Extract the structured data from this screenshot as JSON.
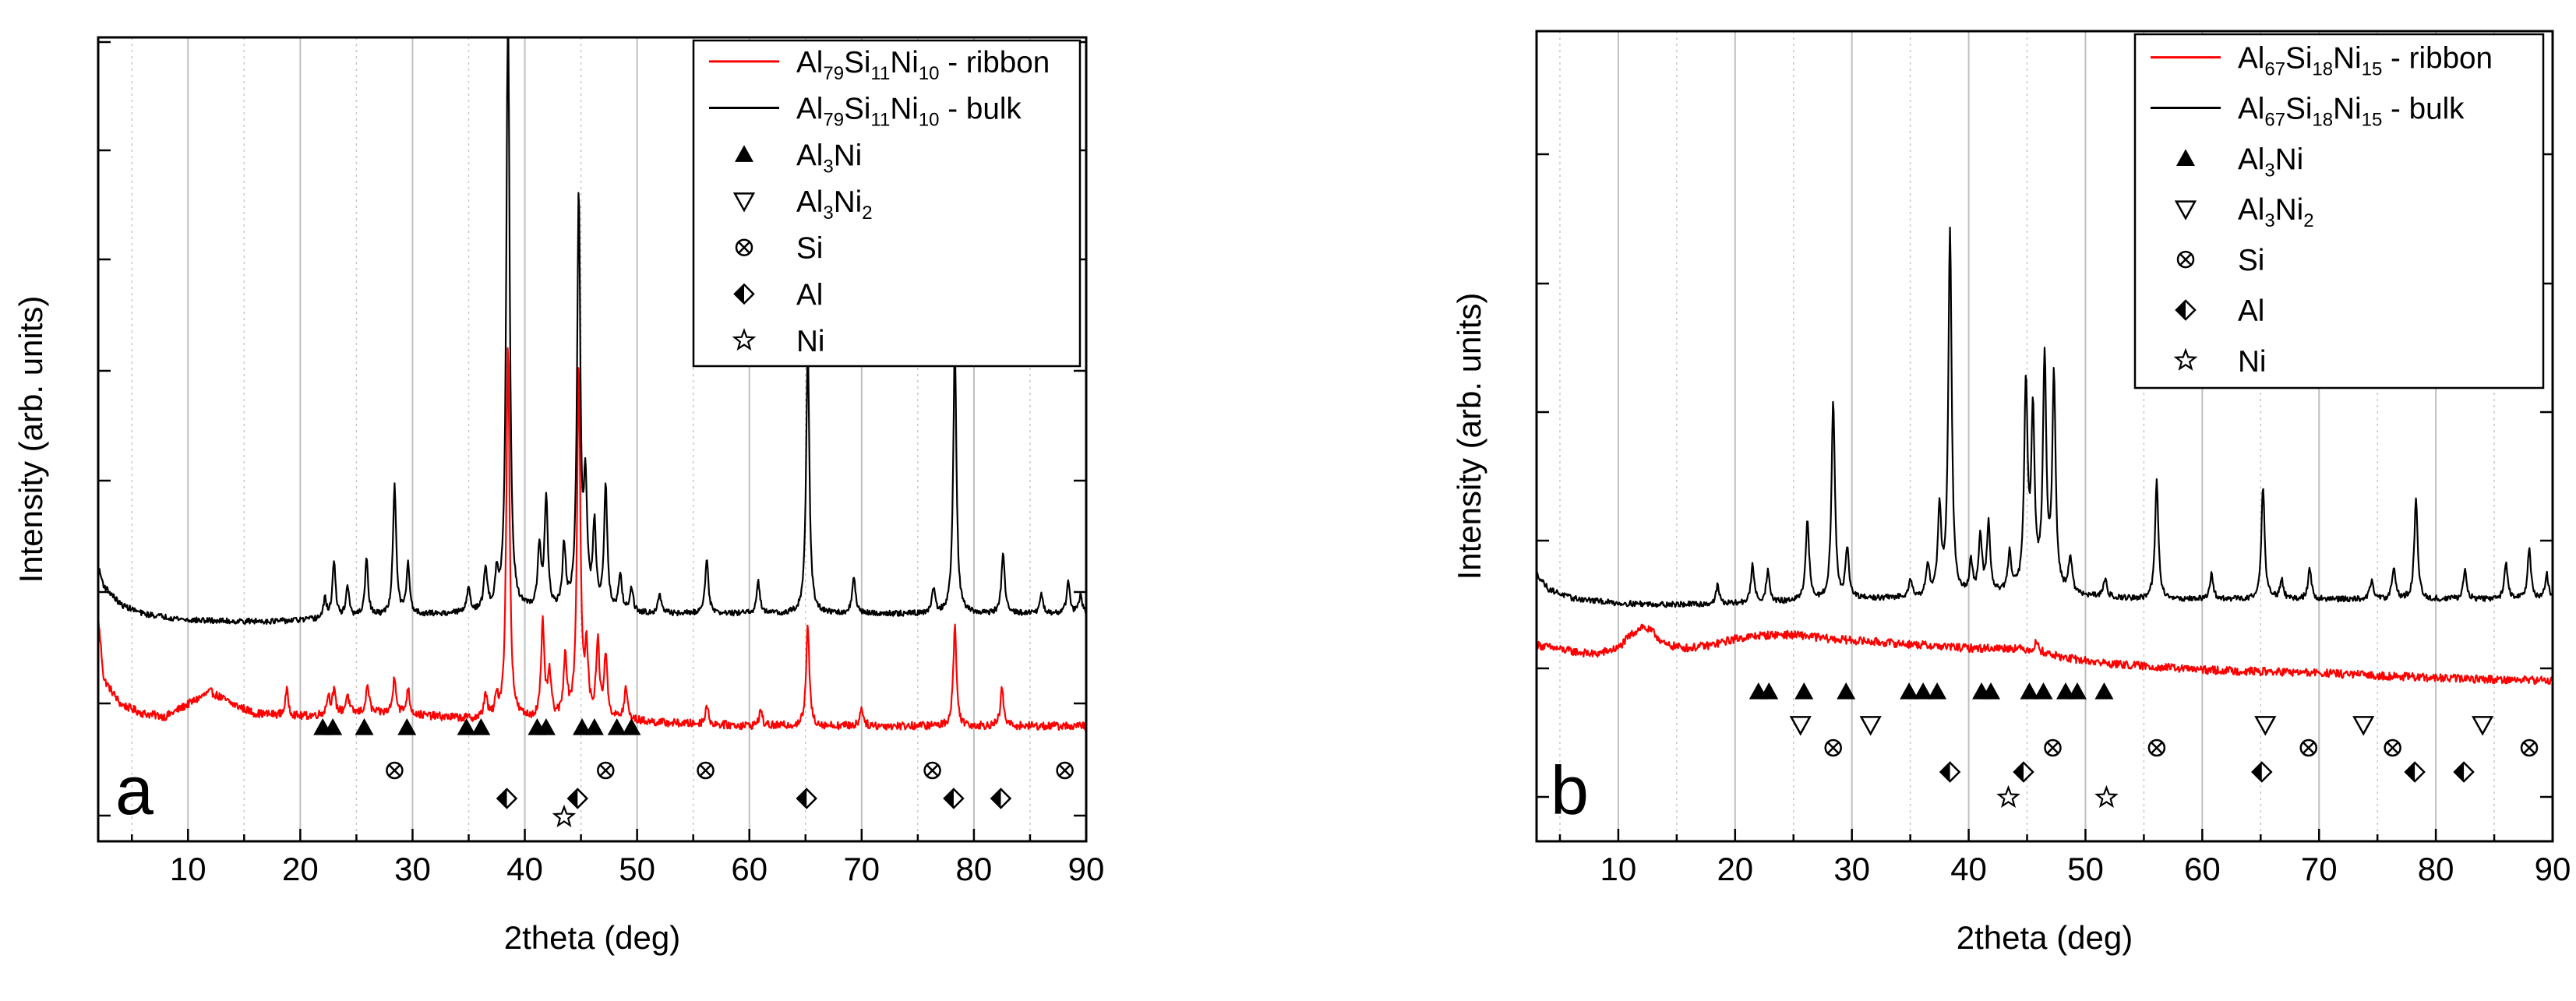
{
  "colors": {
    "ribbon": "#ff0000",
    "bulk": "#000000",
    "axis": "#000000",
    "grid": "#bfbfbf",
    "minorGrid": "#c8c8c8"
  },
  "chart_data": [
    {
      "id": "a",
      "type": "line",
      "panel_label": "a",
      "xlabel": "2theta (deg)",
      "ylabel": "Intensity (arb. units)",
      "xlim": [
        2,
        90
      ],
      "ylim": [
        0,
        100
      ],
      "xticks": [
        "10",
        "20",
        "30",
        "40",
        "50",
        "60",
        "70",
        "80",
        "90"
      ],
      "legend_position": "top-right",
      "series": [
        {
          "name": "Al79Si11Ni10 - ribbon",
          "legend": {
            "base1": "Al",
            "sub1": "79",
            "base2": "Si",
            "sub2": "11",
            "base3": "Ni",
            "sub3": "10",
            "suffix": " - ribbon"
          },
          "color": "#ff0000",
          "baseline": [
            [
              2,
              36
            ],
            [
              2.5,
              26
            ],
            [
              4,
              22
            ],
            [
              6,
              20.5
            ],
            [
              8,
              20
            ],
            [
              10,
              22
            ],
            [
              12,
              24
            ],
            [
              14,
              22
            ],
            [
              16,
              20.5
            ],
            [
              20,
              20
            ],
            [
              24,
              20.5
            ],
            [
              28,
              20.5
            ],
            [
              32,
              20
            ],
            [
              36,
              19.5
            ],
            [
              40,
              19.5
            ],
            [
              44,
              19.5
            ],
            [
              48,
              19.5
            ],
            [
              52,
              19
            ],
            [
              60,
              18.5
            ],
            [
              70,
              18.5
            ],
            [
              80,
              18.5
            ],
            [
              90,
              18.5
            ]
          ],
          "peaks": [
            [
              18.8,
              4
            ],
            [
              22.5,
              3
            ],
            [
              23,
              3.5
            ],
            [
              24.2,
              3
            ],
            [
              26,
              4.5
            ],
            [
              28.4,
              6
            ],
            [
              29.6,
              4
            ],
            [
              36.5,
              4
            ],
            [
              37.5,
              3
            ],
            [
              38.5,
              60
            ],
            [
              41.6,
              15
            ],
            [
              42.2,
              7
            ],
            [
              43.6,
              10
            ],
            [
              44.8,
              56
            ],
            [
              45.5,
              10
            ],
            [
              46.5,
              12
            ],
            [
              47.2,
              10
            ],
            [
              49,
              5
            ],
            [
              56.2,
              3
            ],
            [
              61,
              2.5
            ],
            [
              65.2,
              16
            ],
            [
              70,
              3
            ],
            [
              78.3,
              16
            ],
            [
              82.5,
              6
            ]
          ]
        },
        {
          "name": "Al79Si11Ni10 - bulk",
          "legend": {
            "base1": "Al",
            "sub1": "79",
            "base2": "Si",
            "sub2": "11",
            "base3": "Ni",
            "sub3": "10",
            "suffix": " - bulk"
          },
          "color": "#000000",
          "baseline": [
            [
              2,
              44
            ],
            [
              2.5,
              41
            ],
            [
              4,
              38
            ],
            [
              6,
              36.5
            ],
            [
              10,
              35.5
            ],
            [
              14,
              35.3
            ],
            [
              18,
              35.3
            ],
            [
              22,
              35.6
            ],
            [
              26,
              36
            ],
            [
              30,
              36.3
            ],
            [
              34,
              36.5
            ],
            [
              38,
              36.8
            ],
            [
              42,
              36.8
            ],
            [
              46,
              36.8
            ],
            [
              50,
              36.5
            ],
            [
              55,
              36.5
            ],
            [
              60,
              36.5
            ],
            [
              70,
              36.5
            ],
            [
              80,
              36.5
            ],
            [
              90,
              36.5
            ]
          ],
          "peaks": [
            [
              22.2,
              3
            ],
            [
              23,
              9
            ],
            [
              24.2,
              5
            ],
            [
              25.9,
              9
            ],
            [
              28.4,
              21
            ],
            [
              29.6,
              8
            ],
            [
              35,
              4
            ],
            [
              36.5,
              7
            ],
            [
              37.5,
              5
            ],
            [
              38.5,
              100
            ],
            [
              41.3,
              10
            ],
            [
              41.9,
              18
            ],
            [
              43.5,
              10
            ],
            [
              44.8,
              66
            ],
            [
              45.4,
              19
            ],
            [
              46.2,
              13
            ],
            [
              47.2,
              20
            ],
            [
              48.5,
              6
            ],
            [
              49.5,
              4
            ],
            [
              52,
              3
            ],
            [
              56.2,
              9
            ],
            [
              60.8,
              5
            ],
            [
              65.2,
              43
            ],
            [
              69.3,
              6
            ],
            [
              76.4,
              4
            ],
            [
              78.3,
              43
            ],
            [
              82.6,
              10
            ],
            [
              86,
              3
            ],
            [
              88.4,
              5
            ],
            [
              89.5,
              3
            ]
          ]
        }
      ],
      "markers": [
        {
          "symbol": "triangle-up",
          "label": "Al3Ni",
          "legend": {
            "base1": "Al",
            "sub1": "3",
            "base2": "Ni"
          },
          "row": 0,
          "x": [
            22,
            22.9,
            25.7,
            29.5,
            34.8,
            36.1,
            41.1,
            41.9,
            45.1,
            46.2,
            48.2,
            49.5
          ]
        },
        {
          "symbol": "triangle-down",
          "label": "Al3Ni2",
          "legend": {
            "base1": "Al",
            "sub1": "3",
            "base2": "Ni",
            "sub2": "2"
          },
          "row": 1,
          "x": []
        },
        {
          "symbol": "circle-x",
          "label": "Si",
          "legend": {
            "base1": "Si"
          },
          "row": 1,
          "x": [
            28.4,
            47.2,
            56.1,
            76.3,
            88.1
          ]
        },
        {
          "symbol": "half-diamond",
          "label": "Al",
          "legend": {
            "base1": "Al"
          },
          "row": 2,
          "x": [
            38.4,
            44.7,
            65.1,
            78.2,
            82.4
          ]
        },
        {
          "symbol": "star",
          "label": "Ni",
          "legend": {
            "base1": "Ni"
          },
          "row": 3,
          "x": [
            43.5
          ]
        }
      ]
    },
    {
      "id": "b",
      "type": "line",
      "panel_label": "b",
      "xlabel": "2theta (deg)",
      "ylabel": "Intensity (arb. units)",
      "xlim": [
        3,
        90
      ],
      "ylim": [
        0,
        100
      ],
      "xticks": [
        "10",
        "20",
        "30",
        "40",
        "50",
        "60",
        "70",
        "80",
        "90"
      ],
      "legend_position": "top-right",
      "series": [
        {
          "name": "Al67Si18Ni15 - ribbon",
          "legend": {
            "base1": "Al",
            "sub1": "67",
            "base2": "Si",
            "sub2": "18",
            "base3": "Ni",
            "sub3": "15",
            "suffix": " - ribbon"
          },
          "color": "#ff0000",
          "baseline": [
            [
              3,
              31.5
            ],
            [
              6,
              30.5
            ],
            [
              8,
              30
            ],
            [
              10,
              31
            ],
            [
              11,
              33
            ],
            [
              12,
              34.5
            ],
            [
              13,
              33.5
            ],
            [
              14,
              31.5
            ],
            [
              16,
              31
            ],
            [
              18,
              31.5
            ],
            [
              20,
              32.5
            ],
            [
              22,
              33
            ],
            [
              24,
              33.2
            ],
            [
              26,
              33
            ],
            [
              28,
              32.5
            ],
            [
              32,
              32
            ],
            [
              36,
              31.5
            ],
            [
              40,
              31
            ],
            [
              44,
              31
            ],
            [
              46,
              30.5
            ],
            [
              48,
              29.5
            ],
            [
              52,
              28.5
            ],
            [
              56,
              28
            ],
            [
              60,
              27.5
            ],
            [
              70,
              27
            ],
            [
              80,
              26.2
            ],
            [
              90,
              25.8
            ]
          ],
          "peaks": [
            [
              45.8,
              1.5
            ]
          ]
        },
        {
          "name": "Al67Si18Ni15 - bulk",
          "legend": {
            "base1": "Al",
            "sub1": "67",
            "base2": "Si",
            "sub2": "18",
            "base3": "Ni",
            "sub3": "15",
            "suffix": " - bulk"
          },
          "color": "#000000",
          "baseline": [
            [
              3,
              43
            ],
            [
              4,
              40.5
            ],
            [
              6,
              39
            ],
            [
              10,
              38.2
            ],
            [
              14,
              38
            ],
            [
              18,
              38
            ],
            [
              22,
              38.2
            ],
            [
              26,
              38.5
            ],
            [
              30,
              38.8
            ],
            [
              34,
              39
            ],
            [
              38,
              39
            ],
            [
              42,
              39.5
            ],
            [
              46,
              40
            ],
            [
              50,
              39.2
            ],
            [
              55,
              38.8
            ],
            [
              60,
              38.8
            ],
            [
              70,
              38.8
            ],
            [
              80,
              38.8
            ],
            [
              90,
              38.8
            ]
          ],
          "peaks": [
            [
              18.5,
              3
            ],
            [
              21.5,
              6
            ],
            [
              22.8,
              5
            ],
            [
              26.2,
              13
            ],
            [
              28.4,
              32
            ],
            [
              29.6,
              8
            ],
            [
              35,
              3
            ],
            [
              36.5,
              5
            ],
            [
              37.5,
              14
            ],
            [
              38.4,
              59
            ],
            [
              40.2,
              5
            ],
            [
              41,
              9
            ],
            [
              41.7,
              11
            ],
            [
              43.5,
              6
            ],
            [
              44.9,
              33
            ],
            [
              45.5,
              28
            ],
            [
              46.5,
              37
            ],
            [
              47.3,
              34
            ],
            [
              48.7,
              6
            ],
            [
              51.7,
              3
            ],
            [
              56.1,
              19
            ],
            [
              60.8,
              4
            ],
            [
              65.2,
              18
            ],
            [
              66.8,
              3
            ],
            [
              69.2,
              5
            ],
            [
              74.5,
              3
            ],
            [
              76.4,
              5
            ],
            [
              78.3,
              16
            ],
            [
              82.5,
              5
            ],
            [
              86,
              6
            ],
            [
              88,
              8
            ],
            [
              89.5,
              4
            ]
          ]
        }
      ],
      "markers": [
        {
          "symbol": "triangle-up",
          "label": "Al3Ni",
          "legend": {
            "base1": "Al",
            "sub1": "3",
            "base2": "Ni"
          },
          "row": 0,
          "x": [
            22,
            22.9,
            25.9,
            29.5,
            34.9,
            36.1,
            37.3,
            41.1,
            41.9,
            45.2,
            46.4,
            48.3,
            49.3,
            51.6
          ]
        },
        {
          "symbol": "triangle-down",
          "label": "Al3Ni2",
          "legend": {
            "base1": "Al",
            "sub1": "3",
            "base2": "Ni",
            "sub2": "2"
          },
          "row": 1,
          "x": [
            25.6,
            31.6,
            65.4,
            73.8,
            84
          ]
        },
        {
          "symbol": "circle-x",
          "label": "Si",
          "legend": {
            "base1": "Si"
          },
          "row": 2,
          "x": [
            28.4,
            47.2,
            56.1,
            69.1,
            76.3,
            88
          ]
        },
        {
          "symbol": "half-diamond",
          "label": "Al",
          "legend": {
            "base1": "Al"
          },
          "row": 3,
          "x": [
            38.4,
            44.7,
            65.1,
            78.2,
            82.4
          ]
        },
        {
          "symbol": "star",
          "label": "Ni",
          "legend": {
            "base1": "Ni"
          },
          "row": 4,
          "x": [
            43.4,
            51.8
          ]
        }
      ]
    }
  ]
}
